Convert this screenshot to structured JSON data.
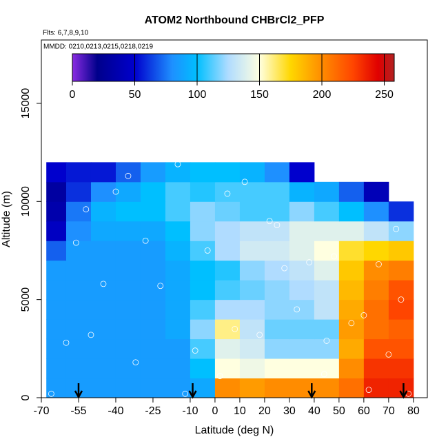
{
  "chart_data": {
    "type": "heatmap",
    "title": "ATOM2 Northbound CHBrCl2_PFP",
    "note_flights": "Flts: 6,7,8,9,10",
    "note_dates": "MMDD: 0210,0213,0215,0218,0219",
    "x_label": "Latitude (deg N)",
    "y_label": "Altitude (m)",
    "xlim": [
      -70,
      85.6
    ],
    "xticks": [
      -70,
      -55,
      -40,
      -25,
      -10,
      0,
      10,
      20,
      30,
      40,
      50,
      60,
      70,
      80
    ],
    "ylim": [
      0,
      18230
    ],
    "yticks": [
      0,
      5000,
      10000,
      15000
    ],
    "heatmap": {
      "x_edges": [
        -68,
        -60,
        -50,
        -40,
        -30,
        -20,
        -10,
        0,
        10,
        20,
        30,
        40,
        50,
        60,
        70,
        80
      ],
      "y_edges": [
        0,
        1000,
        2000,
        3000,
        4000,
        5000,
        6000,
        7000,
        8000,
        9000,
        10000,
        11000,
        12000
      ],
      "values": [
        [
          85,
          85,
          85,
          85,
          85,
          85,
          90,
          200,
          195,
          200,
          200,
          200,
          210,
          235,
          235
        ],
        [
          85,
          85,
          85,
          85,
          85,
          85,
          100,
          150,
          145,
          150,
          150,
          150,
          200,
          230,
          230
        ],
        [
          85,
          85,
          85,
          85,
          85,
          85,
          110,
          140,
          135,
          120,
          120,
          120,
          190,
          220,
          220
        ],
        [
          85,
          85,
          85,
          85,
          85,
          90,
          120,
          160,
          130,
          115,
          115,
          115,
          195,
          210,
          215
        ],
        [
          85,
          85,
          85,
          85,
          85,
          90,
          110,
          125,
          125,
          120,
          120,
          130,
          190,
          210,
          225
        ],
        [
          85,
          85,
          85,
          85,
          85,
          90,
          100,
          110,
          115,
          120,
          125,
          130,
          185,
          205,
          220
        ],
        [
          85,
          85,
          85,
          85,
          85,
          90,
          100,
          105,
          120,
          125,
          130,
          140,
          180,
          200,
          205
        ],
        [
          70,
          85,
          85,
          85,
          85,
          95,
          110,
          125,
          135,
          135,
          140,
          150,
          170,
          175,
          180
        ],
        [
          45,
          80,
          90,
          90,
          90,
          100,
          120,
          125,
          130,
          130,
          140,
          140,
          140,
          130,
          120
        ],
        [
          35,
          75,
          95,
          100,
          100,
          110,
          120,
          115,
          110,
          110,
          120,
          110,
          100,
          80,
          60
        ],
        [
          30,
          60,
          80,
          90,
          100,
          110,
          105,
          110,
          110,
          110,
          95,
          90,
          70,
          40,
          null
        ],
        [
          50,
          55,
          55,
          70,
          85,
          95,
          100,
          100,
          95,
          80,
          50,
          null,
          null,
          null,
          null
        ]
      ]
    },
    "samples": {
      "x": [
        -66,
        -60,
        -56,
        -50,
        -45,
        -40,
        -32,
        -28,
        -22,
        -15,
        -12,
        -8,
        -3,
        2,
        8,
        12,
        18,
        22,
        28,
        33,
        38,
        44,
        48,
        55,
        62,
        66,
        70,
        75,
        78,
        -52,
        -35,
        5,
        25,
        45,
        60,
        73
      ],
      "y": [
        200,
        2800,
        7900,
        3200,
        5800,
        10500,
        1800,
        8000,
        5700,
        11900,
        200,
        2400,
        7500,
        1100,
        3500,
        11000,
        3200,
        9000,
        6600,
        4500,
        6900,
        1200,
        7200,
        3800,
        400,
        6800,
        2200,
        5000,
        200,
        9600,
        11300,
        10400,
        8800,
        2900,
        4200,
        8600
      ]
    },
    "arrows": [
      -55,
      -9,
      39,
      76
    ],
    "colorbar": {
      "lim": [
        0,
        258
      ],
      "ticks": [
        0,
        50,
        100,
        150,
        200,
        250
      ],
      "stops": [
        {
          "value": 0,
          "color": "#8a2be2"
        },
        {
          "value": 20,
          "color": "#00008b"
        },
        {
          "value": 50,
          "color": "#0000cd"
        },
        {
          "value": 80,
          "color": "#1e90ff"
        },
        {
          "value": 100,
          "color": "#00bfff"
        },
        {
          "value": 125,
          "color": "#b0dcff"
        },
        {
          "value": 150,
          "color": "#ffffe0"
        },
        {
          "value": 175,
          "color": "#ffd700"
        },
        {
          "value": 200,
          "color": "#ff8c00"
        },
        {
          "value": 225,
          "color": "#ff4500"
        },
        {
          "value": 245,
          "color": "#e00000"
        },
        {
          "value": 258,
          "color": "#b22222"
        }
      ]
    }
  }
}
